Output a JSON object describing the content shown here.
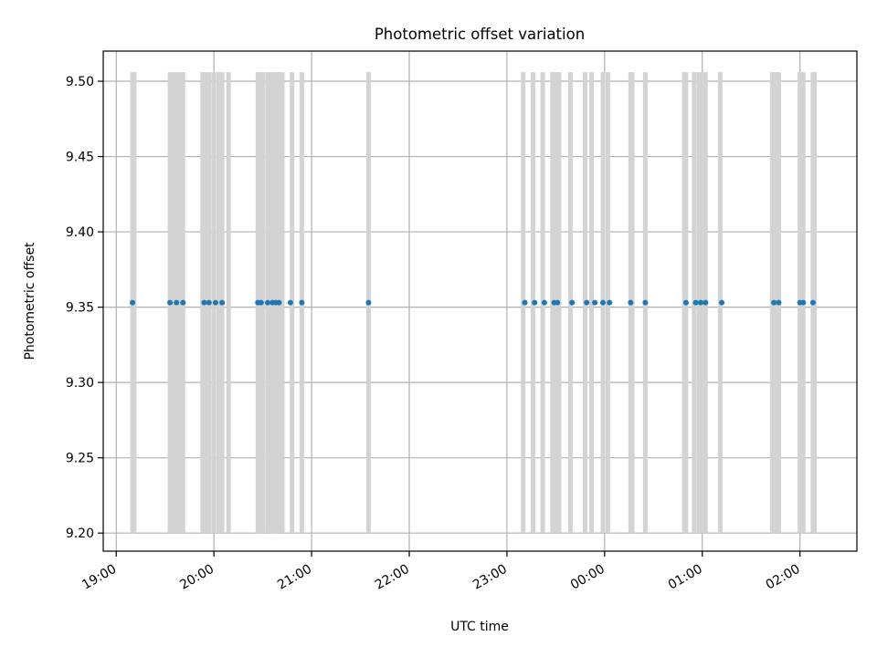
{
  "chart_data": {
    "type": "scatter",
    "title": "Photometric offset variation",
    "xlabel": "UTC time",
    "ylabel": "Photometric offset",
    "xlim": [
      "18:52",
      "02:35"
    ],
    "ylim": [
      9.188,
      9.52
    ],
    "grid": true,
    "colors": {
      "points": "#1f77b4",
      "bands": "#d3d3d3",
      "grid": "#b0b0b0"
    },
    "x_ticks": [
      "19:00",
      "20:00",
      "21:00",
      "22:00",
      "23:00",
      "00:00",
      "01:00",
      "02:00"
    ],
    "y_ticks": [
      "9.20",
      "9.25",
      "9.30",
      "9.35",
      "9.40",
      "9.45",
      "9.50"
    ],
    "bands": {
      "y_range": [
        9.2,
        9.506
      ],
      "x": [
        "19:10",
        "19:11",
        "19:33",
        "19:35",
        "19:37",
        "19:39",
        "19:41",
        "19:53",
        "19:55",
        "19:57",
        "20:00",
        "20:03",
        "20:05",
        "20:09",
        "20:27",
        "20:28",
        "20:29",
        "20:30",
        "20:33",
        "20:34",
        "20:35",
        "20:36",
        "20:37",
        "20:38",
        "20:39",
        "20:40",
        "20:42",
        "20:48",
        "20:54",
        "21:35",
        "23:10",
        "23:16",
        "23:22",
        "23:28",
        "23:30",
        "23:32",
        "23:39",
        "23:48",
        "23:52",
        "23:59",
        "00:02",
        "00:16",
        "00:17",
        "00:25",
        "00:49",
        "00:50",
        "00:55",
        "00:58",
        "01:00",
        "01:02",
        "01:11",
        "01:43",
        "01:44",
        "01:45",
        "01:47",
        "02:00",
        "02:01",
        "02:02",
        "02:08",
        "02:09"
      ]
    },
    "series": [
      {
        "x": [
          "19:10",
          "19:33",
          "19:37",
          "19:41",
          "19:54",
          "19:57",
          "20:01",
          "20:05",
          "20:27",
          "20:29",
          "20:33",
          "20:36",
          "20:38",
          "20:40",
          "20:47",
          "20:54",
          "21:35",
          "23:11",
          "23:17",
          "23:23",
          "23:29",
          "23:31",
          "23:40",
          "23:49",
          "23:54",
          "23:59",
          "00:03",
          "00:16",
          "00:25",
          "00:50",
          "00:56",
          "00:59",
          "01:02",
          "01:12",
          "01:44",
          "01:47",
          "02:00",
          "02:02",
          "02:08"
        ],
        "y": [
          9.353,
          9.353,
          9.353,
          9.353,
          9.353,
          9.353,
          9.353,
          9.353,
          9.353,
          9.353,
          9.353,
          9.353,
          9.353,
          9.353,
          9.353,
          9.353,
          9.353,
          9.353,
          9.353,
          9.353,
          9.353,
          9.353,
          9.353,
          9.353,
          9.353,
          9.353,
          9.353,
          9.353,
          9.353,
          9.353,
          9.353,
          9.353,
          9.353,
          9.353,
          9.353,
          9.353,
          9.353,
          9.353,
          9.353
        ]
      }
    ]
  }
}
